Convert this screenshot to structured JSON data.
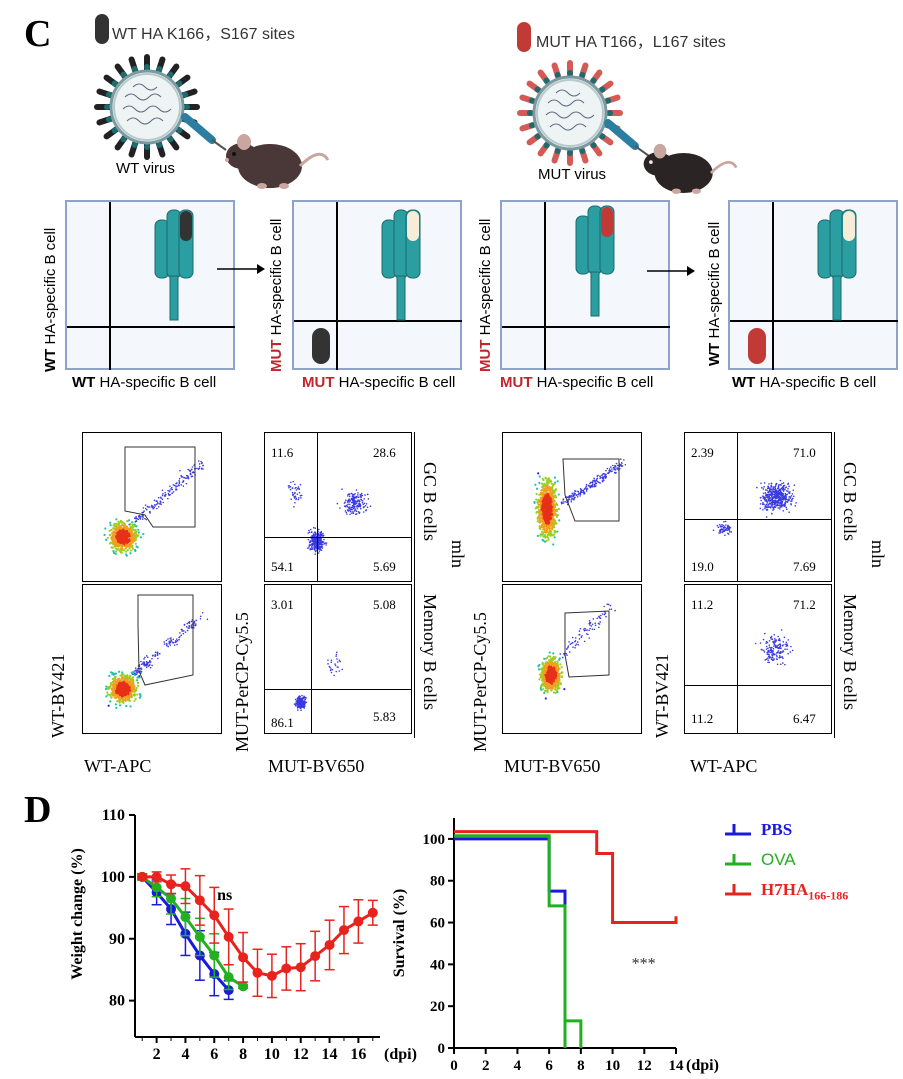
{
  "panel_c": {
    "letter": "C",
    "wt_legend": "WT HA K166，S167 sites",
    "mut_legend": "MUT HA T166，L167 sites",
    "wt_virus_label": "WT virus",
    "mut_virus_label": "MUT virus",
    "diagrams": [
      {
        "y_bold": "WT",
        "y_rest": " HA-specific B cell",
        "x_bold": "WT",
        "x_rest": " HA-specific B cell",
        "y_red": false,
        "x_red": false
      },
      {
        "y_bold": "MUT",
        "y_rest": " HA-specific B cell",
        "x_bold": "MUT",
        "x_rest": " HA-specific B cell",
        "y_red": true,
        "x_red": true
      },
      {
        "y_bold": "MUT",
        "y_rest": " HA-specific B cell",
        "x_bold": "MUT",
        "x_rest": " HA-specific B cell",
        "y_red": true,
        "x_red": true
      },
      {
        "y_bold": "WT",
        "y_rest": " HA-specific B cell",
        "x_bold": "WT",
        "x_rest": " HA-specific B cell",
        "y_red": false,
        "x_red": false
      }
    ],
    "flow": {
      "left_gate_y_label": "WT-BV421",
      "left_gate_x_label": "WT-APC",
      "left_quad_y_label": "MUT-PerCP-Cy5.5",
      "left_quad_x_label": "MUT-BV650",
      "right_gate_y_label": "MUT-PerCP-Cy5.5",
      "right_gate_x_label": "MUT-BV650",
      "right_quad_y_label": "WT-BV421",
      "right_quad_x_label": "WT-APC",
      "row_labels": [
        "GC B cells",
        "Memory B cells"
      ],
      "tissue_label": "mln",
      "left_gc_quadrants": [
        "11.6",
        "28.6",
        "54.1",
        "5.69"
      ],
      "left_mem_quadrants": [
        "3.01",
        "5.08",
        "86.1",
        "5.83"
      ],
      "right_gc_quadrants": [
        "2.39",
        "71.0",
        "19.0",
        "7.69"
      ],
      "right_mem_quadrants": [
        "11.2",
        "71.2",
        "11.2",
        "6.47"
      ]
    }
  },
  "panel_d": {
    "letter": "D",
    "legend": [
      {
        "label": "PBS",
        "color": "#1a1adb"
      },
      {
        "label": "OVA",
        "color": "#22b022"
      },
      {
        "label": "H7HA",
        "sub": "166-186",
        "color": "#e8231e"
      }
    ],
    "significance_weight": "ns",
    "significance_survival": "***"
  },
  "chart_data": [
    {
      "type": "line",
      "ylabel": "Weight change (%)",
      "xlabel": "(dpi)",
      "xlim": [
        0.5,
        17.5
      ],
      "ylim": [
        78,
        110
      ],
      "xticks": [
        2,
        4,
        6,
        8,
        10,
        12,
        14,
        16
      ],
      "yticks": [
        80,
        90,
        100,
        110
      ],
      "series": [
        {
          "name": "PBS",
          "color": "#1a1adb",
          "x": [
            1,
            2,
            3,
            4,
            5,
            6,
            7
          ],
          "y": [
            100,
            97.5,
            94.8,
            90.8,
            87.3,
            84.3,
            81.7
          ],
          "err": [
            0.5,
            2.0,
            2.5,
            3.5,
            4.0,
            3.5,
            1.5
          ]
        },
        {
          "name": "OVA",
          "color": "#22b022",
          "x": [
            1,
            2,
            3,
            4,
            5,
            6,
            7,
            8
          ],
          "y": [
            100,
            98.3,
            96.5,
            93.5,
            90.3,
            87.3,
            83.8,
            82.3
          ],
          "err": [
            0.5,
            1.5,
            2.5,
            3.0,
            3.0,
            3.5,
            2.0,
            0.3
          ]
        },
        {
          "name": "H7HA166-186",
          "color": "#e8231e",
          "x": [
            1,
            2,
            3,
            4,
            5,
            6,
            7,
            8,
            9,
            10,
            11,
            12,
            13,
            14,
            15,
            16,
            17
          ],
          "y": [
            100,
            100,
            98.8,
            98.5,
            96.2,
            93.8,
            90.3,
            87.0,
            84.5,
            84.0,
            85.2,
            85.4,
            87.2,
            89.0,
            91.4,
            92.8,
            94.2
          ],
          "err": [
            0.3,
            0.8,
            1.5,
            2.8,
            4.0,
            4.5,
            4.5,
            4.0,
            3.8,
            3.5,
            3.5,
            3.8,
            4.0,
            4.0,
            3.8,
            3.5,
            2.0
          ]
        }
      ]
    },
    {
      "type": "line",
      "ylabel": "Survival (%)",
      "xlabel": "(dpi)",
      "xlim": [
        0,
        14
      ],
      "ylim": [
        0,
        110
      ],
      "xticks": [
        0,
        2,
        4,
        6,
        8,
        10,
        12,
        14
      ],
      "yticks": [
        0,
        20,
        40,
        60,
        80,
        100
      ],
      "series": [
        {
          "name": "PBS",
          "color": "#1a1adb",
          "steps": [
            [
              0,
              100
            ],
            [
              6,
              100
            ],
            [
              6,
              75
            ],
            [
              7,
              75
            ],
            [
              7,
              0
            ]
          ]
        },
        {
          "name": "OVA",
          "color": "#22b022",
          "steps": [
            [
              0,
              101.5
            ],
            [
              6,
              101.5
            ],
            [
              6,
              68
            ],
            [
              7,
              68
            ],
            [
              7,
              0
            ],
            [
              7,
              13
            ],
            [
              8,
              13
            ],
            [
              8,
              0
            ]
          ]
        },
        {
          "name": "H7HA166-186",
          "color": "#e8231e",
          "steps": [
            [
              0,
              103.5
            ],
            [
              9,
              103.5
            ],
            [
              9,
              93
            ],
            [
              10,
              93
            ],
            [
              10,
              60
            ],
            [
              14,
              60
            ],
            [
              14,
              63
            ]
          ]
        }
      ]
    }
  ]
}
